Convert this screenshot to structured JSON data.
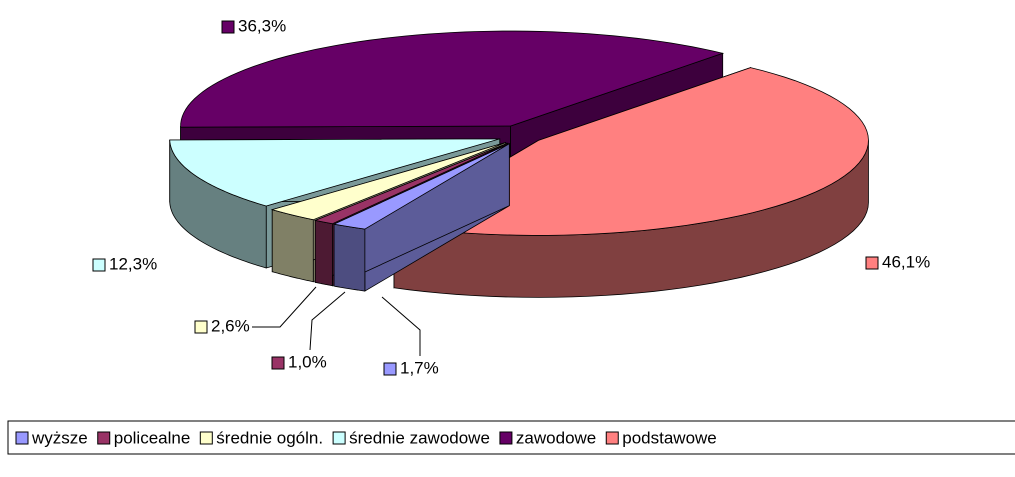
{
  "chart_data": {
    "type": "pie3d",
    "categories": [
      "wyższe",
      "policealne",
      "średnie ogóln.",
      "średnie zawodowe",
      "zawodowe",
      "podstawowe"
    ],
    "values": [
      1.7,
      1.0,
      2.6,
      12.3,
      36.3,
      46.1
    ],
    "value_labels": [
      "1,7%",
      "1,0%",
      "2,6%",
      "12,3%",
      "36,3%",
      "46,1%"
    ],
    "colors": [
      "#9999ff",
      "#993366",
      "#ffffcc",
      "#ccffff",
      "#660066",
      "#ff8080"
    ],
    "legend": "bottom"
  }
}
